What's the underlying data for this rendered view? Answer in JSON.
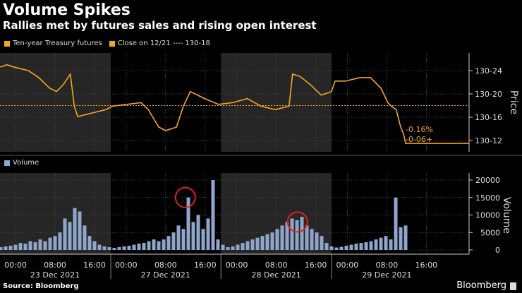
{
  "header": {
    "title": "Volume Spikes",
    "subtitle": "Rallies met by futures sales and rising open interest"
  },
  "legend": {
    "price_series": "Ten-year Treasury futures",
    "close_line": "Close on 12/21 ---- 130-18",
    "volume_series": "Volume"
  },
  "footer": {
    "source": "Source: Bloomberg",
    "brand": "Bloomberg"
  },
  "colors": {
    "price": "#f5a623",
    "volume": "#8fa6cc",
    "annotation": "#e0201b",
    "shade": "#262626"
  },
  "chart_data": [
    {
      "type": "line",
      "title": "Ten-year Treasury futures",
      "ylabel": "Price",
      "x_unit": "session hours from 23 Dec 00:00",
      "yticks": [
        {
          "v": 24,
          "label": "130-24"
        },
        {
          "v": 20,
          "label": "130-20"
        },
        {
          "v": 16,
          "label": "130-16"
        },
        {
          "v": 12,
          "label": "130-12"
        }
      ],
      "y_unit": "32nds above 130",
      "ylim": [
        10.5,
        26
      ],
      "close_ref": 18,
      "x": [
        -3.1,
        -1.7,
        -0.3,
        2.6,
        4.7,
        6.9,
        8.3,
        9.7,
        11.1,
        11.9,
        12.6,
        15.4,
        18.3,
        19.7,
        22.6,
        25.4,
        26.9,
        29,
        30.4,
        32.6,
        34,
        35.4,
        38.3,
        41.1,
        44,
        46.9,
        49.7,
        52.6,
        55.4,
        56.1,
        57.6,
        59.7,
        61.9,
        64,
        64.7,
        66.9,
        69.7,
        71.9,
        74,
        75.4,
        76.1,
        77.1,
        78,
        78.6,
        79,
        91.9
      ],
      "y": [
        24.6,
        25,
        24.6,
        24,
        22.8,
        21,
        20.4,
        21.6,
        23.4,
        17.9,
        16.1,
        16.7,
        17.3,
        17.9,
        18.2,
        18.5,
        17.3,
        14.3,
        13.7,
        14.3,
        17.9,
        20.4,
        19.2,
        18.2,
        18.5,
        19.2,
        17.9,
        17.3,
        17.9,
        23.4,
        23,
        21.6,
        19.8,
        20.4,
        22.2,
        22.2,
        22.8,
        22.8,
        21,
        18.5,
        17.9,
        17.3,
        14.3,
        13.1,
        11.5,
        11.5
      ],
      "annotations": [
        "-0.16%",
        "-0-06+"
      ]
    },
    {
      "type": "bar",
      "title": "Volume",
      "ylabel": "Volume",
      "ylim": [
        0,
        22000
      ],
      "yticks": [
        {
          "v": 20000,
          "label": "20000"
        },
        {
          "v": 15000,
          "label": "15000"
        },
        {
          "v": 10000,
          "label": "10000"
        },
        {
          "v": 5000,
          "label": "5000"
        },
        {
          "v": 0,
          "label": "0"
        }
      ],
      "x_start": -3,
      "values": [
        800,
        1000,
        1200,
        1500,
        2000,
        1800,
        2500,
        2200,
        3000,
        2500,
        3500,
        4000,
        5000,
        9000,
        8000,
        12000,
        11000,
        7000,
        4000,
        2500,
        1500,
        1000,
        800,
        600,
        800,
        1000,
        1200,
        1500,
        1800,
        2000,
        2500,
        3000,
        2500,
        3000,
        4000,
        5000,
        7000,
        6000,
        15000,
        8000,
        10000,
        6000,
        9000,
        20000,
        3000,
        1500,
        800,
        1000,
        1500,
        2000,
        2500,
        3000,
        3500,
        4000,
        4500,
        5000,
        6000,
        7000,
        8000,
        9000,
        8500,
        9500,
        7000,
        6000,
        5000,
        4000,
        2000,
        1000,
        700,
        900,
        1200,
        1500,
        1800,
        2000,
        2200,
        2500,
        3000,
        3500,
        4000,
        3000,
        15000,
        6500,
        7000
      ],
      "highlights": [
        {
          "x": 34.4,
          "v": 15000
        },
        {
          "x": 57.1,
          "v": 8000
        }
      ]
    }
  ],
  "xaxis": {
    "days": [
      {
        "date": "23 Dec 2021",
        "ticks": [
          "00:00",
          "08:00",
          "16:00"
        ]
      },
      {
        "date": "27 Dec 2021",
        "ticks": [
          "00:00",
          "08:00",
          "16:00"
        ]
      },
      {
        "date": "28 Dec 2021",
        "ticks": [
          "00:00",
          "08:00",
          "16:00"
        ]
      },
      {
        "date": "29 Dec 2021",
        "ticks": [
          "00:00",
          "08:00",
          "16:00"
        ]
      }
    ]
  }
}
